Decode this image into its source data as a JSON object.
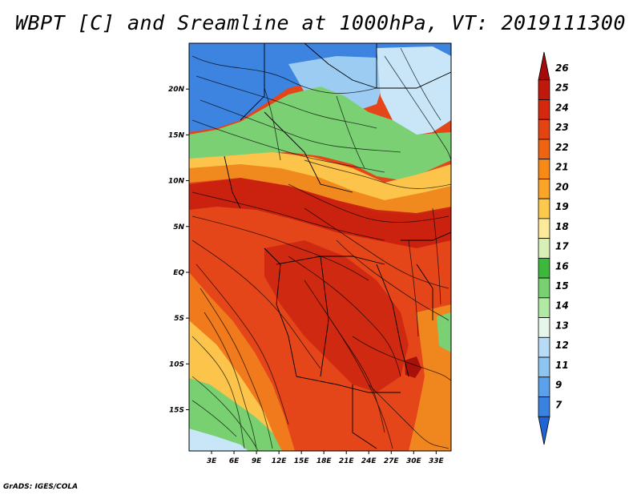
{
  "title": "WBPT [C] and Sreamline at 1000hPa, VT: 2019111300",
  "credit": "GrADS: IGES/COLA",
  "map": {
    "lat_labels": [
      "20N",
      "15N",
      "10N",
      "5N",
      "EQ",
      "5S",
      "10S",
      "15S"
    ],
    "lat_values": [
      20,
      15,
      10,
      5,
      0,
      -5,
      -10,
      -15
    ],
    "lon_labels": [
      "3E",
      "6E",
      "9E",
      "12E",
      "15E",
      "18E",
      "21E",
      "24E",
      "27E",
      "30E",
      "33E"
    ],
    "lon_values": [
      3,
      6,
      9,
      12,
      15,
      18,
      21,
      24,
      27,
      30,
      33
    ]
  },
  "colorbar": {
    "labels": [
      "26",
      "25",
      "24",
      "23",
      "22",
      "21",
      "20",
      "19",
      "18",
      "17",
      "16",
      "15",
      "14",
      "13",
      "12",
      "11",
      "9",
      "7"
    ],
    "colors": [
      "#a50a0a",
      "#c0180c",
      "#d6280e",
      "#e44412",
      "#ef6412",
      "#f78a16",
      "#faa52a",
      "#fcc94c",
      "#fde99a",
      "#d8f0b8",
      "#3cb83c",
      "#78d070",
      "#b0e8a4",
      "#e6f6ea",
      "#b8dcf6",
      "#8ec4f0",
      "#5aa0ea",
      "#3a82e0",
      "#1e64d4"
    ]
  }
}
